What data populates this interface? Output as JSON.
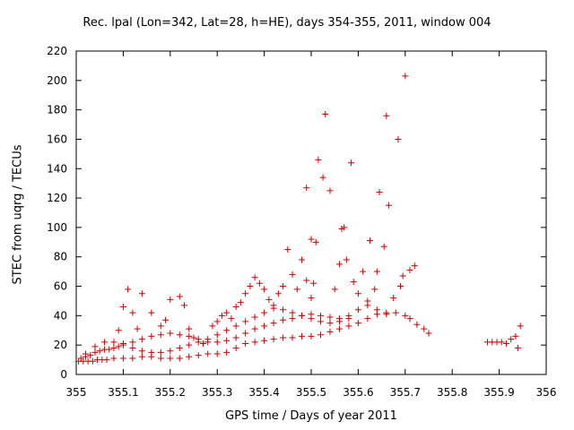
{
  "chart_data": {
    "type": "scatter",
    "title": "Rec. lpal (Lon=342, Lat=28, h=HE), days 354-355, 2011, window 004",
    "xlabel": "GPS time / Days of year 2011",
    "ylabel": "STEC from uqrg / TECUs",
    "xlim": [
      355,
      356
    ],
    "ylim": [
      0,
      220
    ],
    "xticks": [
      355,
      355.1,
      355.2,
      355.3,
      355.4,
      355.5,
      355.6,
      355.7,
      355.8,
      355.9,
      356
    ],
    "xtick_labels": [
      "355",
      "355.1",
      "355.2",
      "355.3",
      "355.4",
      "355.5",
      "355.6",
      "355.7",
      "355.8",
      "355.9",
      "356"
    ],
    "yticks": [
      0,
      20,
      40,
      60,
      80,
      100,
      120,
      140,
      160,
      180,
      200,
      220
    ],
    "ytick_labels": [
      "0",
      "20",
      "40",
      "60",
      "80",
      "100",
      "120",
      "140",
      "160",
      "180",
      "200",
      "220"
    ],
    "grid": false,
    "marker": "plus",
    "color": "#cc0000",
    "series": [
      {
        "points": [
          [
            355.005,
            9
          ],
          [
            355.015,
            9
          ],
          [
            355.025,
            9
          ],
          [
            355.035,
            9
          ],
          [
            355.045,
            10
          ],
          [
            355.055,
            10
          ],
          [
            355.065,
            10
          ],
          [
            355.08,
            11
          ],
          [
            355.1,
            11
          ],
          [
            355.12,
            11
          ],
          [
            355.14,
            12
          ],
          [
            355.16,
            12
          ],
          [
            355.18,
            11
          ],
          [
            355.2,
            11
          ],
          [
            355.22,
            11
          ],
          [
            355.24,
            12
          ],
          [
            355.26,
            13
          ],
          [
            355.28,
            14
          ],
          [
            355.3,
            14
          ],
          [
            355.32,
            15
          ],
          [
            355.34,
            18
          ],
          [
            355.36,
            21
          ],
          [
            355.38,
            22
          ],
          [
            355.4,
            23
          ],
          [
            355.42,
            24
          ],
          [
            355.44,
            25
          ],
          [
            355.46,
            25
          ],
          [
            355.48,
            26
          ],
          [
            355.5,
            26
          ],
          [
            355.52,
            27
          ],
          [
            355.54,
            29
          ],
          [
            355.56,
            31
          ],
          [
            355.58,
            33
          ],
          [
            355.6,
            35
          ],
          [
            355.62,
            38
          ],
          [
            355.64,
            41
          ],
          [
            355.66,
            42
          ],
          [
            355.68,
            42
          ],
          [
            355.7,
            40
          ],
          [
            355.71,
            38
          ],
          [
            355.725,
            34
          ],
          [
            355.74,
            31
          ],
          [
            355.75,
            28
          ],
          [
            355.01,
            11
          ],
          [
            355.02,
            12
          ],
          [
            355.03,
            13
          ],
          [
            355.04,
            15
          ],
          [
            355.05,
            16
          ],
          [
            355.06,
            17
          ],
          [
            355.07,
            17
          ],
          [
            355.08,
            18
          ],
          [
            355.09,
            19
          ],
          [
            355.1,
            20
          ],
          [
            355.12,
            22
          ],
          [
            355.14,
            24
          ],
          [
            355.16,
            26
          ],
          [
            355.18,
            27
          ],
          [
            355.2,
            28
          ],
          [
            355.22,
            27
          ],
          [
            355.24,
            26
          ],
          [
            355.26,
            24
          ],
          [
            355.28,
            22
          ],
          [
            355.3,
            22
          ],
          [
            355.32,
            23
          ],
          [
            355.34,
            25
          ],
          [
            355.36,
            28
          ],
          [
            355.38,
            31
          ],
          [
            355.4,
            33
          ],
          [
            355.42,
            35
          ],
          [
            355.44,
            37
          ],
          [
            355.46,
            38
          ],
          [
            355.48,
            40
          ],
          [
            355.5,
            41
          ],
          [
            355.52,
            40
          ],
          [
            355.54,
            39
          ],
          [
            355.56,
            38
          ],
          [
            355.58,
            40
          ],
          [
            355.6,
            44
          ],
          [
            355.62,
            47
          ],
          [
            355.64,
            44
          ],
          [
            355.66,
            41
          ],
          [
            355.02,
            14
          ],
          [
            355.04,
            19
          ],
          [
            355.06,
            22
          ],
          [
            355.08,
            22
          ],
          [
            355.1,
            21
          ],
          [
            355.12,
            18
          ],
          [
            355.14,
            16
          ],
          [
            355.16,
            15
          ],
          [
            355.18,
            15
          ],
          [
            355.2,
            16
          ],
          [
            355.22,
            18
          ],
          [
            355.24,
            20
          ],
          [
            355.26,
            22
          ],
          [
            355.28,
            24
          ],
          [
            355.3,
            27
          ],
          [
            355.32,
            30
          ],
          [
            355.34,
            33
          ],
          [
            355.36,
            36
          ],
          [
            355.38,
            39
          ],
          [
            355.4,
            42
          ],
          [
            355.42,
            45
          ],
          [
            355.44,
            44
          ],
          [
            355.46,
            42
          ],
          [
            355.48,
            40
          ],
          [
            355.5,
            38
          ],
          [
            355.52,
            36
          ],
          [
            355.54,
            35
          ],
          [
            355.56,
            36
          ],
          [
            355.58,
            38
          ],
          [
            355.09,
            30
          ],
          [
            355.1,
            46
          ],
          [
            355.11,
            58
          ],
          [
            355.12,
            42
          ],
          [
            355.13,
            31
          ],
          [
            355.14,
            55
          ],
          [
            355.16,
            42
          ],
          [
            355.18,
            33
          ],
          [
            355.19,
            37
          ],
          [
            355.2,
            51
          ],
          [
            355.22,
            53
          ],
          [
            355.23,
            47
          ],
          [
            355.24,
            31
          ],
          [
            355.25,
            25
          ],
          [
            355.27,
            21
          ],
          [
            355.29,
            33
          ],
          [
            355.3,
            36
          ],
          [
            355.31,
            40
          ],
          [
            355.32,
            42
          ],
          [
            355.33,
            38
          ],
          [
            355.34,
            46
          ],
          [
            355.35,
            49
          ],
          [
            355.36,
            55
          ],
          [
            355.37,
            60
          ],
          [
            355.38,
            66
          ],
          [
            355.39,
            62
          ],
          [
            355.4,
            58
          ],
          [
            355.41,
            51
          ],
          [
            355.42,
            47
          ],
          [
            355.43,
            55
          ],
          [
            355.44,
            60
          ],
          [
            355.45,
            85
          ],
          [
            355.46,
            68
          ],
          [
            355.47,
            58
          ],
          [
            355.48,
            78
          ],
          [
            355.49,
            64
          ],
          [
            355.5,
            52
          ],
          [
            355.505,
            62
          ],
          [
            355.5,
            92
          ],
          [
            355.51,
            90
          ],
          [
            355.49,
            127
          ],
          [
            355.515,
            146
          ],
          [
            355.525,
            134
          ],
          [
            355.53,
            177
          ],
          [
            355.54,
            125
          ],
          [
            355.55,
            58
          ],
          [
            355.56,
            75
          ],
          [
            355.565,
            99
          ],
          [
            355.57,
            100
          ],
          [
            355.575,
            78
          ],
          [
            355.585,
            144
          ],
          [
            355.59,
            63
          ],
          [
            355.6,
            55
          ],
          [
            355.61,
            70
          ],
          [
            355.62,
            50
          ],
          [
            355.625,
            91
          ],
          [
            355.635,
            58
          ],
          [
            355.64,
            70
          ],
          [
            355.645,
            124
          ],
          [
            355.655,
            87
          ],
          [
            355.66,
            176
          ],
          [
            355.665,
            115
          ],
          [
            355.675,
            52
          ],
          [
            355.685,
            160
          ],
          [
            355.69,
            60
          ],
          [
            355.695,
            67
          ],
          [
            355.7,
            203
          ],
          [
            355.71,
            71
          ],
          [
            355.72,
            74
          ],
          [
            355.875,
            22
          ],
          [
            355.885,
            22
          ],
          [
            355.895,
            22
          ],
          [
            355.905,
            22
          ],
          [
            355.915,
            21
          ],
          [
            355.925,
            24
          ],
          [
            355.935,
            26
          ],
          [
            355.94,
            18
          ],
          [
            355.945,
            33
          ]
        ]
      }
    ]
  }
}
